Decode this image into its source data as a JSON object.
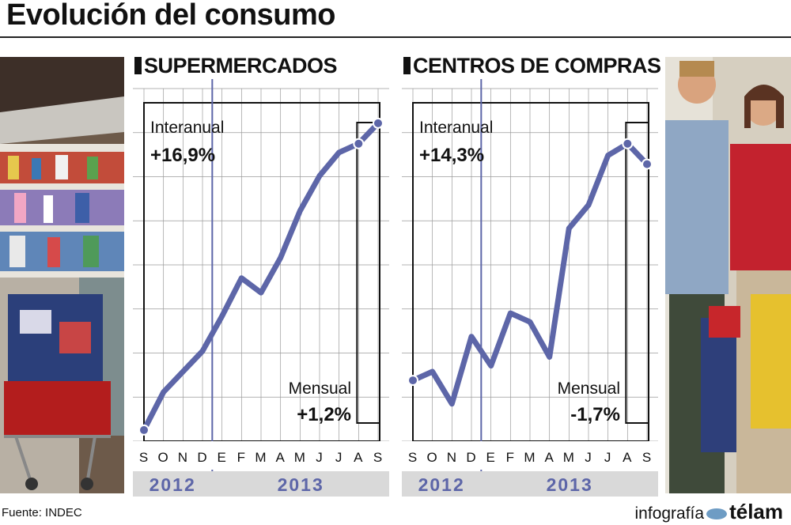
{
  "title": "Evolución del consumo",
  "source": "Fuente: INDEC",
  "credit": {
    "prefix": "infografía",
    "brand": "télam"
  },
  "colors": {
    "line": "#5d66a8",
    "axis_band": "#d9d9d9",
    "grid": "#9a9a9a"
  },
  "chart_data": [
    {
      "type": "line",
      "title": "SUPERMERCADOS",
      "months": [
        "S",
        "O",
        "N",
        "D",
        "E",
        "F",
        "M",
        "A",
        "M",
        "J",
        "J",
        "A",
        "S"
      ],
      "years": [
        {
          "label": "2012",
          "months": 4
        },
        {
          "label": "2013",
          "months": 9
        }
      ],
      "values": [
        3,
        16,
        23,
        30,
        42,
        55,
        50,
        62,
        78,
        90,
        98,
        101,
        108
      ],
      "ylim": [
        0,
        115
      ],
      "grid": true,
      "annotations": [
        {
          "label": "Interanual",
          "value": "+16,9%"
        },
        {
          "label": "Mensual",
          "value": "+1,2%"
        }
      ]
    },
    {
      "type": "line",
      "title": "CENTROS DE COMPRAS",
      "months": [
        "S",
        "O",
        "N",
        "D",
        "E",
        "F",
        "M",
        "A",
        "M",
        "J",
        "J",
        "A",
        "S"
      ],
      "years": [
        {
          "label": "2012",
          "months": 4
        },
        {
          "label": "2013",
          "months": 9
        }
      ],
      "values": [
        20,
        23,
        12,
        35,
        25,
        43,
        40,
        28,
        72,
        80,
        97,
        101,
        94
      ],
      "ylim": [
        0,
        115
      ],
      "grid": true,
      "annotations": [
        {
          "label": "Interanual",
          "value": "+14,3%"
        },
        {
          "label": "Mensual",
          "value": "-1,7%"
        }
      ]
    }
  ]
}
